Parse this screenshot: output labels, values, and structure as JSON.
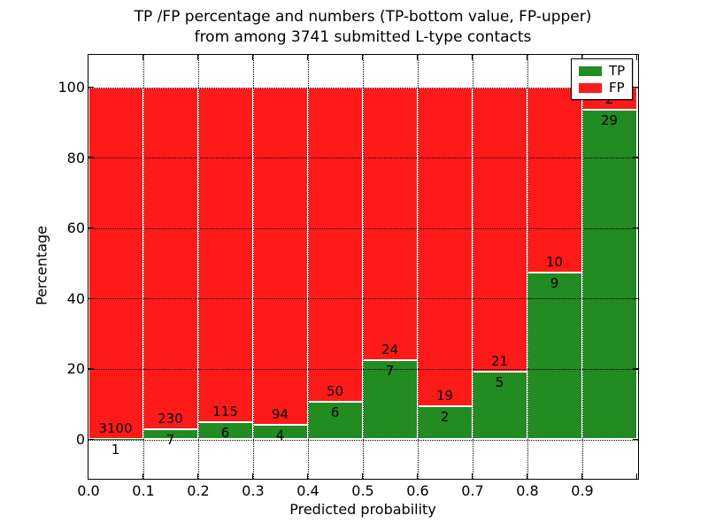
{
  "chart_data": {
    "type": "bar",
    "variant": "stacked-percentage",
    "title_line1": "TP /FP percentage and numbers (TP-bottom value, FP-upper)",
    "title_line2": "from among 3741 submitted L-type contacts",
    "total_contacts": 3741,
    "xlabel": "Predicted probability",
    "ylabel": "Percentage",
    "x_ticks": [
      "0.0",
      "0.1",
      "0.2",
      "0.3",
      "0.4",
      "0.5",
      "0.6",
      "0.7",
      "0.8",
      "0.9"
    ],
    "y_ticks": [
      0,
      20,
      40,
      60,
      80,
      100
    ],
    "ylim": [
      -10.8,
      109.3
    ],
    "grid": "dotted",
    "legend_position": "upper-right",
    "colors": {
      "tp": "#228b22",
      "fp": "#ff1a1a",
      "bar_edge": "#ffffff"
    },
    "legend": [
      {
        "label": "TP",
        "color": "#228b22"
      },
      {
        "label": "FP",
        "color": "#ff1a1a"
      }
    ],
    "series": [
      {
        "name": "TP",
        "values": [
          1,
          7,
          6,
          4,
          6,
          7,
          2,
          5,
          9,
          29
        ]
      },
      {
        "name": "FP",
        "values": [
          3100,
          230,
          115,
          94,
          50,
          24,
          19,
          21,
          10,
          2
        ]
      }
    ],
    "bins": [
      {
        "x_start": 0.0,
        "x_end": 0.1,
        "tp": 1,
        "fp": 3100
      },
      {
        "x_start": 0.1,
        "x_end": 0.2,
        "tp": 7,
        "fp": 230
      },
      {
        "x_start": 0.2,
        "x_end": 0.3,
        "tp": 6,
        "fp": 115
      },
      {
        "x_start": 0.3,
        "x_end": 0.4,
        "tp": 4,
        "fp": 94
      },
      {
        "x_start": 0.4,
        "x_end": 0.5,
        "tp": 6,
        "fp": 50
      },
      {
        "x_start": 0.5,
        "x_end": 0.6,
        "tp": 7,
        "fp": 24
      },
      {
        "x_start": 0.6,
        "x_end": 0.7,
        "tp": 2,
        "fp": 19
      },
      {
        "x_start": 0.7,
        "x_end": 0.8,
        "tp": 5,
        "fp": 21
      },
      {
        "x_start": 0.8,
        "x_end": 0.9,
        "tp": 9,
        "fp": 10
      },
      {
        "x_start": 0.9,
        "x_end": 1.0,
        "tp": 29,
        "fp": 2
      }
    ]
  }
}
